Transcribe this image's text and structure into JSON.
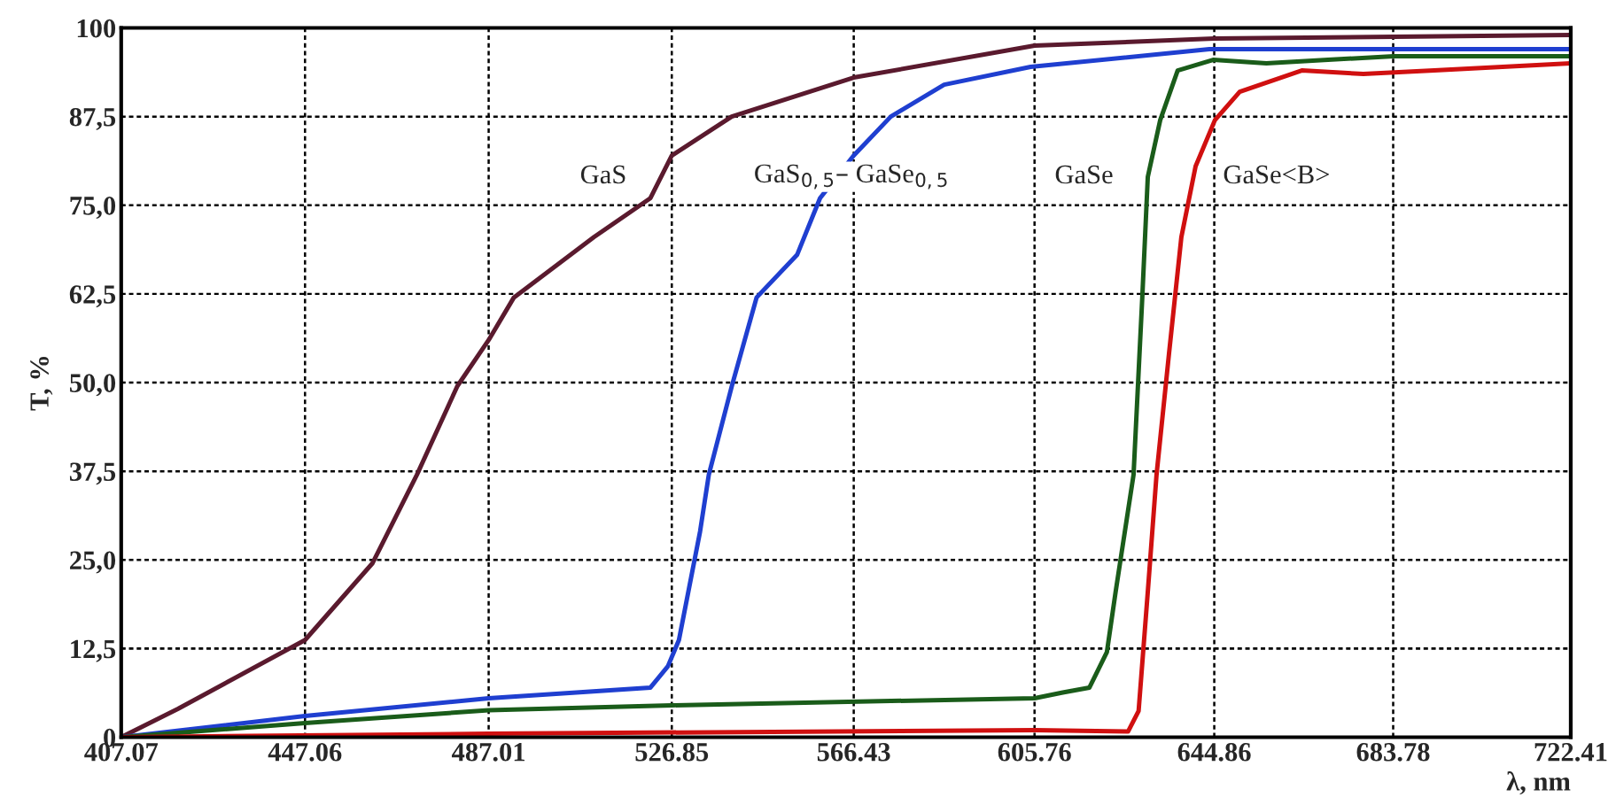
{
  "chart_data": {
    "type": "line",
    "xlabel": "λ, nm",
    "ylabel": "T, %",
    "xlim": [
      407.07,
      722.41
    ],
    "xticks": [
      407.07,
      447.06,
      487.01,
      526.85,
      566.43,
      605.76,
      644.86,
      683.78,
      722.41
    ],
    "ylim": [
      0,
      100
    ],
    "yticks": [
      0,
      {
        "value": 12.5,
        "label": "12,5"
      },
      {
        "value": 25,
        "label": "25,0"
      },
      {
        "value": 37.5,
        "label": "37,5"
      },
      {
        "value": 50,
        "label": "50,0"
      },
      {
        "value": 62.5,
        "label": "62,5"
      },
      {
        "value": 75,
        "label": "75,0"
      },
      {
        "value": 87.5,
        "label": "87,5"
      },
      100
    ],
    "grid": true,
    "line_style": "solid",
    "marker": "none",
    "series": [
      {
        "name": "GaS",
        "color": "#5a1a2e",
        "x": [
          407.07,
          419.4,
          447.06,
          461.7,
          471.4,
          480.2,
          487.01,
          492.5,
          509.9,
          522.2,
          526.85,
          539.9,
          566.43,
          605.76,
          644.86,
          722.41
        ],
        "values": [
          0,
          4,
          13.7,
          24.5,
          37,
          49.5,
          56,
          62,
          70.5,
          76,
          82,
          87.5,
          93,
          97.5,
          98.5,
          99
        ]
      },
      {
        "name": "GaS$_{0,5}$– GaSe$_{0,5}$",
        "color": "#1f3fd0",
        "x": [
          407.07,
          447.06,
          487.01,
          522.2,
          526.0,
          528.4,
          533.0,
          534.9,
          539.9,
          545.3,
          554.1,
          559.1,
          566.4,
          574.5,
          586.1,
          604.9,
          643.8,
          722.41
        ],
        "values": [
          0,
          3,
          5.5,
          7,
          10,
          13.7,
          29,
          37,
          49.5,
          62,
          68,
          76,
          82,
          87.5,
          92,
          94.5,
          97,
          97
        ]
      },
      {
        "name": "GaSe",
        "color": "#1a5c1a",
        "x": [
          407.07,
          447.06,
          487.01,
          526.85,
          605.76,
          611.9,
          617.7,
          621.5,
          623.4,
          627.3,
          629.2,
          630.4,
          633.1,
          636.9,
          644.6,
          656.2,
          669.6,
          683.9,
          722.41
        ],
        "values": [
          0,
          2,
          3.8,
          4.5,
          5.5,
          6.3,
          7,
          12,
          20.5,
          37,
          62,
          79,
          87,
          94,
          95.5,
          95,
          95.5,
          96,
          96
        ]
      },
      {
        "name": "GaSe<B>",
        "color": "#d01010",
        "x": [
          407.07,
          487.01,
          605.76,
          626.1,
          628.4,
          630.4,
          632.3,
          635.0,
          637.7,
          640.8,
          645.0,
          650.4,
          663.9,
          677.3,
          692.7,
          722.41
        ],
        "values": [
          0,
          0.5,
          1,
          0.8,
          3.7,
          20.5,
          37,
          54,
          70.5,
          80.5,
          87,
          91,
          94,
          93.5,
          94,
          95
        ]
      }
    ]
  }
}
